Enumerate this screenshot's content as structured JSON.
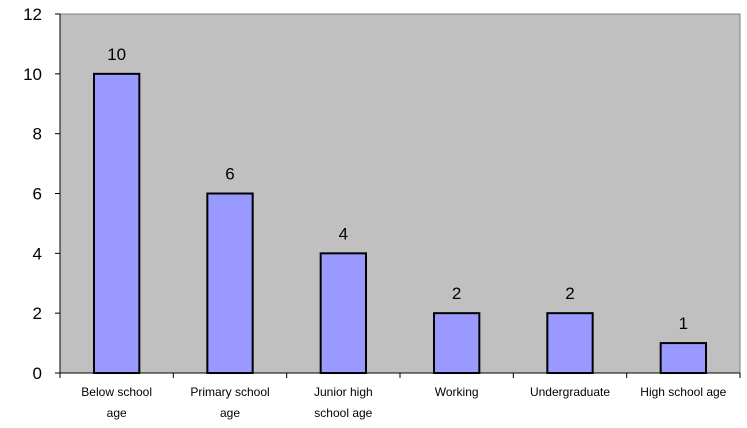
{
  "chart_data": {
    "type": "bar",
    "title": "",
    "xlabel": "",
    "ylabel": "",
    "categories": [
      [
        "Below school",
        "age"
      ],
      [
        "Primary school",
        "age"
      ],
      [
        "Junior high",
        "school age"
      ],
      [
        "Working"
      ],
      [
        "Undergraduate"
      ],
      [
        "High school age"
      ]
    ],
    "values": [
      10,
      6,
      4,
      2,
      2,
      1
    ],
    "ylim": [
      0,
      12
    ],
    "yticks": [
      0,
      2,
      4,
      6,
      8,
      10,
      12
    ],
    "grid": false,
    "legend": "none",
    "colors": {
      "plot_background": "#c0c0c0",
      "bar_fill": "#9999ff",
      "bar_stroke": "#000000",
      "axis": "#000000",
      "frame": "#808080"
    }
  }
}
